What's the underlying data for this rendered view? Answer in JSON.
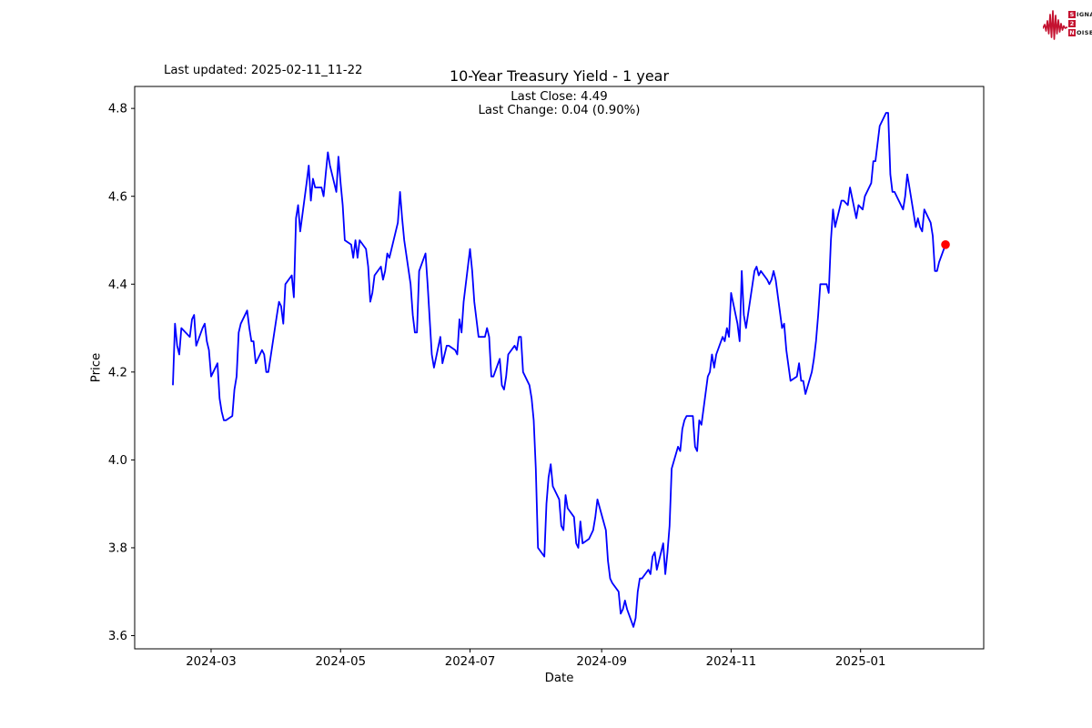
{
  "header": {
    "last_updated": "Last updated: 2025-02-11_11-22",
    "logo": {
      "accent_color": "#c41230",
      "rows": [
        {
          "badge": "S",
          "rest": "IGNAL"
        },
        {
          "badge": "2",
          "rest": ""
        },
        {
          "badge": "N",
          "rest": "OISE"
        }
      ]
    }
  },
  "chart_data": {
    "type": "line",
    "title": "10-Year Treasury Yield - 1 year",
    "subtitle_lines": [
      "Last Close: 4.49",
      "Last Change: 0.04 (0.90%)"
    ],
    "last_close": 4.49,
    "last_change": "0.04 (0.90%)",
    "xlabel": "Date",
    "ylabel": "Price",
    "x_ticks": [
      "2024-03",
      "2024-05",
      "2024-07",
      "2024-09",
      "2024-11",
      "2025-01"
    ],
    "y_ticks": [
      "3.6",
      "3.8",
      "4.0",
      "4.2",
      "4.4",
      "4.6",
      "4.8"
    ],
    "ylim": [
      3.57,
      4.85
    ],
    "xlim": [
      "2024-01-25",
      "2025-02-28"
    ],
    "grid": false,
    "legend": "none",
    "line_color": "#0000ff",
    "last_point_color": "#ff0000",
    "series": [
      {
        "name": "10-Year Treasury Yield",
        "points": [
          [
            "2024-02-12",
            4.17
          ],
          [
            "2024-02-13",
            4.31
          ],
          [
            "2024-02-14",
            4.26
          ],
          [
            "2024-02-15",
            4.24
          ],
          [
            "2024-02-16",
            4.3
          ],
          [
            "2024-02-20",
            4.28
          ],
          [
            "2024-02-21",
            4.32
          ],
          [
            "2024-02-22",
            4.33
          ],
          [
            "2024-02-23",
            4.26
          ],
          [
            "2024-02-26",
            4.3
          ],
          [
            "2024-02-27",
            4.31
          ],
          [
            "2024-02-28",
            4.27
          ],
          [
            "2024-02-29",
            4.25
          ],
          [
            "2024-03-01",
            4.19
          ],
          [
            "2024-03-04",
            4.22
          ],
          [
            "2024-03-05",
            4.14
          ],
          [
            "2024-03-06",
            4.11
          ],
          [
            "2024-03-07",
            4.09
          ],
          [
            "2024-03-08",
            4.09
          ],
          [
            "2024-03-11",
            4.1
          ],
          [
            "2024-03-12",
            4.16
          ],
          [
            "2024-03-13",
            4.19
          ],
          [
            "2024-03-14",
            4.29
          ],
          [
            "2024-03-15",
            4.31
          ],
          [
            "2024-03-18",
            4.34
          ],
          [
            "2024-03-19",
            4.3
          ],
          [
            "2024-03-20",
            4.27
          ],
          [
            "2024-03-21",
            4.27
          ],
          [
            "2024-03-22",
            4.22
          ],
          [
            "2024-03-25",
            4.25
          ],
          [
            "2024-03-26",
            4.24
          ],
          [
            "2024-03-27",
            4.2
          ],
          [
            "2024-03-28",
            4.2
          ],
          [
            "2024-04-01",
            4.33
          ],
          [
            "2024-04-02",
            4.36
          ],
          [
            "2024-04-03",
            4.35
          ],
          [
            "2024-04-04",
            4.31
          ],
          [
            "2024-04-05",
            4.4
          ],
          [
            "2024-04-08",
            4.42
          ],
          [
            "2024-04-09",
            4.37
          ],
          [
            "2024-04-10",
            4.55
          ],
          [
            "2024-04-11",
            4.58
          ],
          [
            "2024-04-12",
            4.52
          ],
          [
            "2024-04-15",
            4.63
          ],
          [
            "2024-04-16",
            4.67
          ],
          [
            "2024-04-17",
            4.59
          ],
          [
            "2024-04-18",
            4.64
          ],
          [
            "2024-04-19",
            4.62
          ],
          [
            "2024-04-22",
            4.62
          ],
          [
            "2024-04-23",
            4.6
          ],
          [
            "2024-04-24",
            4.65
          ],
          [
            "2024-04-25",
            4.7
          ],
          [
            "2024-04-26",
            4.67
          ],
          [
            "2024-04-29",
            4.61
          ],
          [
            "2024-04-30",
            4.69
          ],
          [
            "2024-05-01",
            4.63
          ],
          [
            "2024-05-02",
            4.58
          ],
          [
            "2024-05-03",
            4.5
          ],
          [
            "2024-05-06",
            4.49
          ],
          [
            "2024-05-07",
            4.46
          ],
          [
            "2024-05-08",
            4.5
          ],
          [
            "2024-05-09",
            4.46
          ],
          [
            "2024-05-10",
            4.5
          ],
          [
            "2024-05-13",
            4.48
          ],
          [
            "2024-05-14",
            4.44
          ],
          [
            "2024-05-15",
            4.36
          ],
          [
            "2024-05-16",
            4.38
          ],
          [
            "2024-05-17",
            4.42
          ],
          [
            "2024-05-20",
            4.44
          ],
          [
            "2024-05-21",
            4.41
          ],
          [
            "2024-05-22",
            4.43
          ],
          [
            "2024-05-23",
            4.47
          ],
          [
            "2024-05-24",
            4.46
          ],
          [
            "2024-05-28",
            4.54
          ],
          [
            "2024-05-29",
            4.61
          ],
          [
            "2024-05-30",
            4.55
          ],
          [
            "2024-05-31",
            4.5
          ],
          [
            "2024-06-03",
            4.4
          ],
          [
            "2024-06-04",
            4.33
          ],
          [
            "2024-06-05",
            4.29
          ],
          [
            "2024-06-06",
            4.29
          ],
          [
            "2024-06-07",
            4.43
          ],
          [
            "2024-06-10",
            4.47
          ],
          [
            "2024-06-11",
            4.4
          ],
          [
            "2024-06-12",
            4.32
          ],
          [
            "2024-06-13",
            4.24
          ],
          [
            "2024-06-14",
            4.21
          ],
          [
            "2024-06-17",
            4.28
          ],
          [
            "2024-06-18",
            4.22
          ],
          [
            "2024-06-20",
            4.26
          ],
          [
            "2024-06-21",
            4.26
          ],
          [
            "2024-06-24",
            4.25
          ],
          [
            "2024-06-25",
            4.24
          ],
          [
            "2024-06-26",
            4.32
          ],
          [
            "2024-06-27",
            4.29
          ],
          [
            "2024-06-28",
            4.36
          ],
          [
            "2024-07-01",
            4.48
          ],
          [
            "2024-07-02",
            4.43
          ],
          [
            "2024-07-03",
            4.36
          ],
          [
            "2024-07-05",
            4.28
          ],
          [
            "2024-07-08",
            4.28
          ],
          [
            "2024-07-09",
            4.3
          ],
          [
            "2024-07-10",
            4.28
          ],
          [
            "2024-07-11",
            4.19
          ],
          [
            "2024-07-12",
            4.19
          ],
          [
            "2024-07-15",
            4.23
          ],
          [
            "2024-07-16",
            4.17
          ],
          [
            "2024-07-17",
            4.16
          ],
          [
            "2024-07-18",
            4.19
          ],
          [
            "2024-07-19",
            4.24
          ],
          [
            "2024-07-22",
            4.26
          ],
          [
            "2024-07-23",
            4.25
          ],
          [
            "2024-07-24",
            4.28
          ],
          [
            "2024-07-25",
            4.28
          ],
          [
            "2024-07-26",
            4.2
          ],
          [
            "2024-07-29",
            4.17
          ],
          [
            "2024-07-30",
            4.14
          ],
          [
            "2024-07-31",
            4.09
          ],
          [
            "2024-08-01",
            3.98
          ],
          [
            "2024-08-02",
            3.8
          ],
          [
            "2024-08-05",
            3.78
          ],
          [
            "2024-08-06",
            3.9
          ],
          [
            "2024-08-07",
            3.96
          ],
          [
            "2024-08-08",
            3.99
          ],
          [
            "2024-08-09",
            3.94
          ],
          [
            "2024-08-12",
            3.91
          ],
          [
            "2024-08-13",
            3.85
          ],
          [
            "2024-08-14",
            3.84
          ],
          [
            "2024-08-15",
            3.92
          ],
          [
            "2024-08-16",
            3.89
          ],
          [
            "2024-08-19",
            3.87
          ],
          [
            "2024-08-20",
            3.81
          ],
          [
            "2024-08-21",
            3.8
          ],
          [
            "2024-08-22",
            3.86
          ],
          [
            "2024-08-23",
            3.81
          ],
          [
            "2024-08-26",
            3.82
          ],
          [
            "2024-08-27",
            3.83
          ],
          [
            "2024-08-28",
            3.84
          ],
          [
            "2024-08-29",
            3.87
          ],
          [
            "2024-08-30",
            3.91
          ],
          [
            "2024-09-03",
            3.84
          ],
          [
            "2024-09-04",
            3.77
          ],
          [
            "2024-09-05",
            3.73
          ],
          [
            "2024-09-06",
            3.72
          ],
          [
            "2024-09-09",
            3.7
          ],
          [
            "2024-09-10",
            3.65
          ],
          [
            "2024-09-11",
            3.66
          ],
          [
            "2024-09-12",
            3.68
          ],
          [
            "2024-09-13",
            3.66
          ],
          [
            "2024-09-16",
            3.62
          ],
          [
            "2024-09-17",
            3.64
          ],
          [
            "2024-09-18",
            3.7
          ],
          [
            "2024-09-19",
            3.73
          ],
          [
            "2024-09-20",
            3.73
          ],
          [
            "2024-09-23",
            3.75
          ],
          [
            "2024-09-24",
            3.74
          ],
          [
            "2024-09-25",
            3.78
          ],
          [
            "2024-09-26",
            3.79
          ],
          [
            "2024-09-27",
            3.75
          ],
          [
            "2024-09-30",
            3.81
          ],
          [
            "2024-10-01",
            3.74
          ],
          [
            "2024-10-02",
            3.79
          ],
          [
            "2024-10-03",
            3.85
          ],
          [
            "2024-10-04",
            3.98
          ],
          [
            "2024-10-07",
            4.03
          ],
          [
            "2024-10-08",
            4.02
          ],
          [
            "2024-10-09",
            4.07
          ],
          [
            "2024-10-10",
            4.09
          ],
          [
            "2024-10-11",
            4.1
          ],
          [
            "2024-10-14",
            4.1
          ],
          [
            "2024-10-15",
            4.03
          ],
          [
            "2024-10-16",
            4.02
          ],
          [
            "2024-10-17",
            4.09
          ],
          [
            "2024-10-18",
            4.08
          ],
          [
            "2024-10-21",
            4.19
          ],
          [
            "2024-10-22",
            4.2
          ],
          [
            "2024-10-23",
            4.24
          ],
          [
            "2024-10-24",
            4.21
          ],
          [
            "2024-10-25",
            4.24
          ],
          [
            "2024-10-28",
            4.28
          ],
          [
            "2024-10-29",
            4.27
          ],
          [
            "2024-10-30",
            4.3
          ],
          [
            "2024-10-31",
            4.28
          ],
          [
            "2024-11-01",
            4.38
          ],
          [
            "2024-11-04",
            4.31
          ],
          [
            "2024-11-05",
            4.27
          ],
          [
            "2024-11-06",
            4.43
          ],
          [
            "2024-11-07",
            4.33
          ],
          [
            "2024-11-08",
            4.3
          ],
          [
            "2024-11-12",
            4.43
          ],
          [
            "2024-11-13",
            4.44
          ],
          [
            "2024-11-14",
            4.42
          ],
          [
            "2024-11-15",
            4.43
          ],
          [
            "2024-11-18",
            4.41
          ],
          [
            "2024-11-19",
            4.4
          ],
          [
            "2024-11-20",
            4.41
          ],
          [
            "2024-11-21",
            4.43
          ],
          [
            "2024-11-22",
            4.41
          ],
          [
            "2024-11-25",
            4.3
          ],
          [
            "2024-11-26",
            4.31
          ],
          [
            "2024-11-27",
            4.25
          ],
          [
            "2024-11-29",
            4.18
          ],
          [
            "2024-12-02",
            4.19
          ],
          [
            "2024-12-03",
            4.22
          ],
          [
            "2024-12-04",
            4.18
          ],
          [
            "2024-12-05",
            4.18
          ],
          [
            "2024-12-06",
            4.15
          ],
          [
            "2024-12-09",
            4.2
          ],
          [
            "2024-12-10",
            4.23
          ],
          [
            "2024-12-11",
            4.27
          ],
          [
            "2024-12-12",
            4.33
          ],
          [
            "2024-12-13",
            4.4
          ],
          [
            "2024-12-16",
            4.4
          ],
          [
            "2024-12-17",
            4.38
          ],
          [
            "2024-12-18",
            4.5
          ],
          [
            "2024-12-19",
            4.57
          ],
          [
            "2024-12-20",
            4.53
          ],
          [
            "2024-12-23",
            4.59
          ],
          [
            "2024-12-24",
            4.59
          ],
          [
            "2024-12-26",
            4.58
          ],
          [
            "2024-12-27",
            4.62
          ],
          [
            "2024-12-30",
            4.55
          ],
          [
            "2024-12-31",
            4.58
          ],
          [
            "2025-01-02",
            4.57
          ],
          [
            "2025-01-03",
            4.6
          ],
          [
            "2025-01-06",
            4.63
          ],
          [
            "2025-01-07",
            4.68
          ],
          [
            "2025-01-08",
            4.68
          ],
          [
            "2025-01-10",
            4.76
          ],
          [
            "2025-01-13",
            4.79
          ],
          [
            "2025-01-14",
            4.79
          ],
          [
            "2025-01-15",
            4.65
          ],
          [
            "2025-01-16",
            4.61
          ],
          [
            "2025-01-17",
            4.61
          ],
          [
            "2025-01-21",
            4.57
          ],
          [
            "2025-01-22",
            4.6
          ],
          [
            "2025-01-23",
            4.65
          ],
          [
            "2025-01-24",
            4.62
          ],
          [
            "2025-01-27",
            4.53
          ],
          [
            "2025-01-28",
            4.55
          ],
          [
            "2025-01-29",
            4.53
          ],
          [
            "2025-01-30",
            4.52
          ],
          [
            "2025-01-31",
            4.57
          ],
          [
            "2025-02-03",
            4.54
          ],
          [
            "2025-02-04",
            4.51
          ],
          [
            "2025-02-05",
            4.43
          ],
          [
            "2025-02-06",
            4.43
          ],
          [
            "2025-02-07",
            4.45
          ],
          [
            "2025-02-10",
            4.49
          ]
        ]
      }
    ]
  }
}
